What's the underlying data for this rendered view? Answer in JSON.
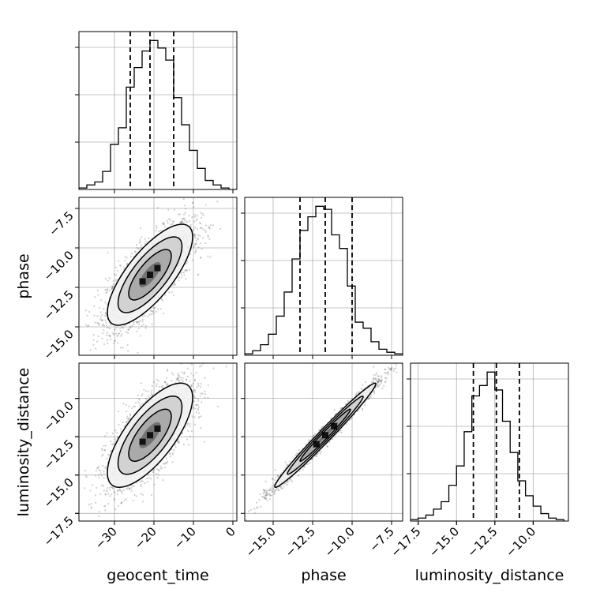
{
  "chart_data": {
    "type": "corner",
    "parameters": [
      "geocent_time",
      "phase",
      "luminosity_distance"
    ],
    "ranges": {
      "geocent_time": [
        -39,
        1
      ],
      "phase": [
        -16.8,
        -6.8
      ],
      "luminosity_distance": [
        -18.0,
        -7.7
      ]
    },
    "ticks": {
      "geocent_time": {
        "values": [
          -30,
          -20,
          -10,
          0
        ],
        "labels": [
          "−30",
          "−20",
          "−10",
          "0"
        ]
      },
      "phase": {
        "values": [
          -15.0,
          -12.5,
          -10.0,
          -7.5
        ],
        "labels": [
          "−15.0",
          "−12.5",
          "−10.0",
          "−7.5"
        ]
      },
      "luminosity_distance": {
        "values": [
          -17.5,
          -15.0,
          -12.5,
          -10.0
        ],
        "labels": [
          "−17.5",
          "−15.0",
          "−12.5",
          "−10.0"
        ]
      }
    },
    "marginals": [
      {
        "parameter": "geocent_time",
        "bin_edges": [
          -39,
          -37,
          -35,
          -33,
          -31,
          -29,
          -27,
          -25,
          -23,
          -21,
          -19,
          -17,
          -15,
          -13,
          -11,
          -9,
          -7,
          -5,
          -3,
          -1,
          1
        ],
        "counts": [
          1,
          3,
          5,
          12,
          30,
          41,
          68,
          81,
          92,
          99,
          94,
          86,
          61,
          43,
          26,
          14,
          6,
          3,
          1,
          0
        ],
        "quantiles": [
          -26,
          -21,
          -15
        ]
      },
      {
        "parameter": "phase",
        "bin_edges": [
          -16.8,
          -16.3,
          -15.8,
          -15.3,
          -14.8,
          -14.3,
          -13.8,
          -13.3,
          -12.8,
          -12.3,
          -11.8,
          -11.3,
          -10.8,
          -10.3,
          -9.8,
          -9.3,
          -8.8,
          -8.3,
          -7.8,
          -7.3,
          -6.8
        ],
        "counts": [
          1,
          3,
          7,
          14,
          26,
          42,
          64,
          83,
          92,
          99,
          97,
          80,
          71,
          46,
          22,
          18,
          9,
          4,
          2,
          1
        ],
        "quantiles": [
          -13.3,
          -11.7,
          -10.0
        ]
      },
      {
        "parameter": "luminosity_distance",
        "bin_edges": [
          -18.0,
          -17.5,
          -17.0,
          -16.5,
          -16.0,
          -15.5,
          -15.0,
          -14.5,
          -14.0,
          -13.5,
          -13.0,
          -12.5,
          -12.0,
          -11.5,
          -11.0,
          -10.5,
          -10.0,
          -9.5,
          -9.0,
          -8.5,
          -8.0
        ],
        "counts": [
          1,
          2,
          4,
          8,
          13,
          24,
          37,
          60,
          84,
          91,
          100,
          88,
          67,
          46,
          27,
          17,
          10,
          5,
          2,
          1
        ],
        "quantiles": [
          -13.9,
          -12.4,
          -10.9
        ]
      }
    ],
    "pairs": [
      {
        "x": "geocent_time",
        "y": "phase",
        "mean": [
          -21,
          -11.7
        ],
        "std": [
          5.4,
          1.6
        ],
        "correlation": 0.75,
        "n_points": 2600,
        "contour_levels_sigma": [
          0.5,
          1.0,
          1.5,
          2.0
        ]
      },
      {
        "x": "geocent_time",
        "y": "luminosity_distance",
        "mean": [
          -21,
          -12.4
        ],
        "std": [
          5.4,
          1.7
        ],
        "correlation": 0.72,
        "n_points": 2600,
        "contour_levels_sigma": [
          0.5,
          1.0,
          1.5,
          2.0
        ]
      },
      {
        "x": "phase",
        "y": "luminosity_distance",
        "mean": [
          -11.7,
          -12.4
        ],
        "std": [
          1.6,
          1.7
        ],
        "correlation": 0.985,
        "n_points": 2600,
        "contour_levels_sigma": [
          0.5,
          1.0,
          1.5,
          2.0
        ]
      }
    ],
    "grid": true,
    "colors": {
      "lines": "#000000",
      "points": "#555555",
      "grid": "#b0b0b0",
      "quantile": "#000000"
    }
  }
}
